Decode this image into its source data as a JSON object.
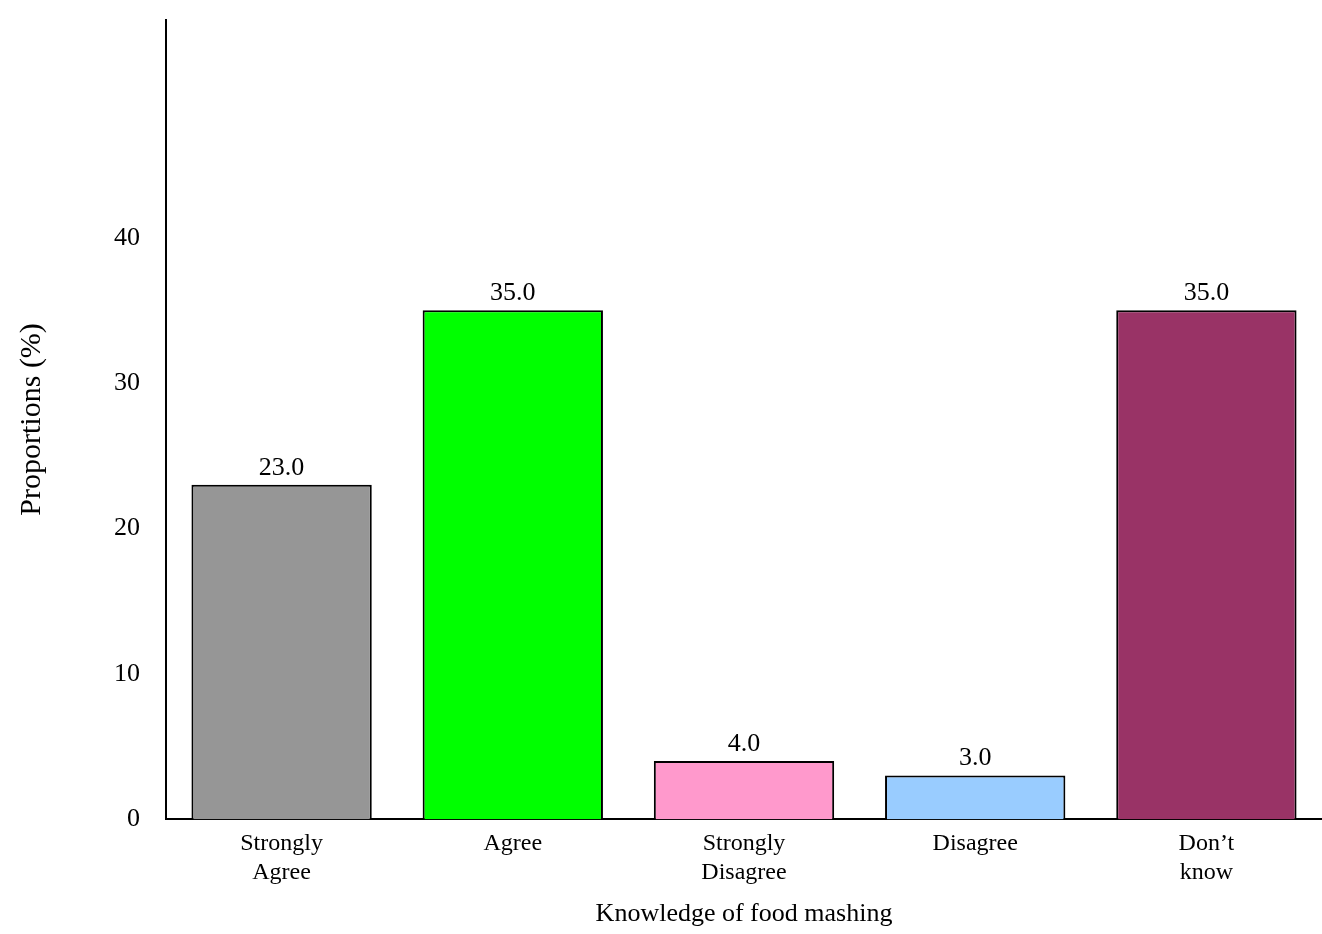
{
  "chart_data": {
    "type": "bar",
    "xlabel": "Knowledge of food mashing",
    "ylabel": "Proportions (%)",
    "categories": [
      "Strongly Agree",
      "Agree",
      "Strongly Disagree",
      "Disagree",
      "Don’t know"
    ],
    "values": [
      23.0,
      35.0,
      4.0,
      3.0,
      35.0
    ],
    "colors": [
      "#969696",
      "#00ff00",
      "#ff99cc",
      "#99ccff",
      "#993366"
    ],
    "ylim": [
      0,
      55
    ],
    "yticks": [
      0,
      10,
      20,
      30,
      40
    ],
    "value_labels": [
      "23.0",
      "35.0",
      "4.0",
      "3.0",
      "35.0"
    ],
    "grid": false,
    "legend": false
  }
}
